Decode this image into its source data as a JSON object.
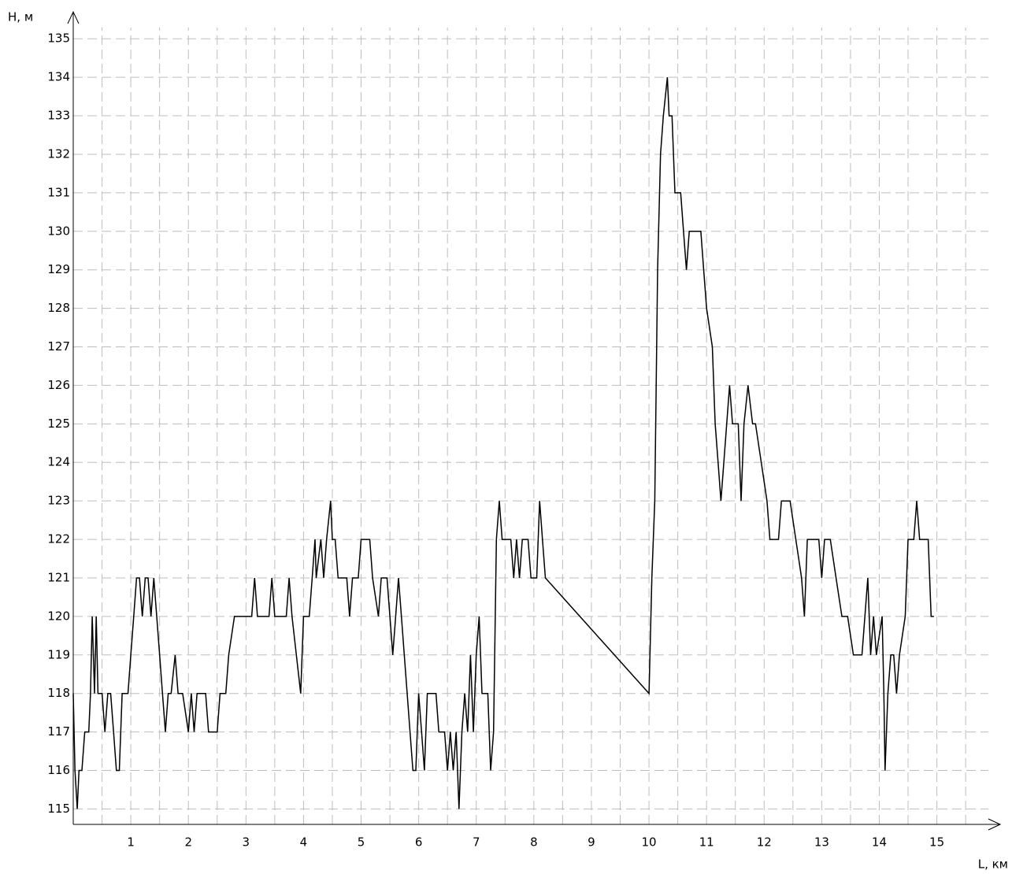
{
  "chart_data": {
    "type": "line",
    "y_label": "H, м",
    "x_label": "L, км",
    "x": [
      0,
      0.03,
      0.07,
      0.1,
      0.15,
      0.2,
      0.27,
      0.3,
      0.33,
      0.37,
      0.4,
      0.43,
      0.5,
      0.55,
      0.6,
      0.65,
      0.7,
      0.75,
      0.8,
      0.85,
      0.95,
      1.0,
      1.05,
      1.1,
      1.15,
      1.2,
      1.25,
      1.3,
      1.35,
      1.4,
      1.45,
      1.5,
      1.55,
      1.6,
      1.65,
      1.7,
      1.77,
      1.82,
      1.9,
      2.0,
      2.05,
      2.1,
      2.15,
      2.3,
      2.35,
      2.5,
      2.55,
      2.65,
      2.7,
      2.8,
      3.1,
      3.15,
      3.2,
      3.4,
      3.45,
      3.5,
      3.7,
      3.75,
      3.8,
      3.95,
      4.0,
      4.1,
      4.15,
      4.2,
      4.22,
      4.3,
      4.35,
      4.4,
      4.47,
      4.5,
      4.55,
      4.6,
      4.75,
      4.8,
      4.85,
      4.95,
      5.0,
      5.15,
      5.2,
      5.3,
      5.35,
      5.45,
      5.5,
      5.55,
      5.6,
      5.65,
      5.7,
      5.8,
      5.9,
      5.95,
      6.0,
      6.05,
      6.1,
      6.15,
      6.3,
      6.35,
      6.45,
      6.5,
      6.55,
      6.6,
      6.65,
      6.7,
      6.75,
      6.8,
      6.85,
      6.9,
      6.95,
      7.0,
      7.05,
      7.1,
      7.2,
      7.25,
      7.3,
      7.35,
      7.4,
      7.45,
      7.6,
      7.65,
      7.7,
      7.75,
      7.8,
      7.9,
      7.95,
      8.05,
      8.1,
      8.15,
      8.2,
      10.0,
      10.05,
      10.1,
      10.15,
      10.2,
      10.25,
      10.32,
      10.35,
      10.4,
      10.45,
      10.55,
      10.6,
      10.65,
      10.7,
      10.9,
      10.95,
      11.0,
      11.1,
      11.15,
      11.2,
      11.25,
      11.3,
      11.4,
      11.45,
      11.55,
      11.6,
      11.65,
      11.72,
      11.8,
      11.85,
      11.95,
      12.05,
      12.1,
      12.25,
      12.3,
      12.45,
      12.55,
      12.65,
      12.7,
      12.75,
      12.95,
      13.0,
      13.05,
      13.15,
      13.25,
      13.35,
      13.45,
      13.55,
      13.7,
      13.75,
      13.8,
      13.85,
      13.9,
      13.95,
      14.05,
      14.08,
      14.1,
      14.15,
      14.2,
      14.25,
      14.3,
      14.35,
      14.45,
      14.5,
      14.6,
      14.65,
      14.7,
      14.85,
      14.9,
      14.95
    ],
    "values": [
      118,
      116,
      115,
      116,
      116,
      117,
      117,
      118,
      120,
      118,
      120,
      118,
      118,
      117,
      118,
      118,
      117,
      116,
      116,
      118,
      118,
      119,
      120,
      121,
      121,
      120,
      121,
      121,
      120,
      121,
      120,
      119,
      118,
      117,
      118,
      118,
      119,
      118,
      118,
      117,
      118,
      117,
      118,
      118,
      117,
      117,
      118,
      118,
      119,
      120,
      120,
      121,
      120,
      120,
      121,
      120,
      120,
      121,
      120,
      118,
      120,
      120,
      121,
      122,
      121,
      122,
      121,
      122,
      123,
      122,
      122,
      121,
      121,
      120,
      121,
      121,
      122,
      122,
      121,
      120,
      121,
      121,
      120,
      119,
      120,
      121,
      120,
      118,
      116,
      116,
      118,
      117,
      116,
      118,
      118,
      117,
      117,
      116,
      117,
      116,
      117,
      115,
      117,
      118,
      117,
      119,
      117,
      119,
      120,
      118,
      118,
      116,
      117,
      122,
      123,
      122,
      122,
      121,
      122,
      121,
      122,
      122,
      121,
      121,
      123,
      122,
      121,
      118,
      121,
      123,
      129,
      132,
      133,
      134,
      133,
      133,
      131,
      131,
      130,
      129,
      130,
      130,
      129,
      128,
      127,
      125,
      124,
      123,
      124,
      126,
      125,
      125,
      123,
      125,
      126,
      125,
      125,
      124,
      123,
      122,
      122,
      123,
      123,
      122,
      121,
      120,
      122,
      122,
      121,
      122,
      122,
      121,
      120,
      120,
      119,
      119,
      120,
      121,
      119,
      120,
      119,
      120,
      118,
      116,
      118,
      119,
      119,
      118,
      119,
      120,
      122,
      122,
      123,
      122,
      122,
      120,
      120
    ],
    "color": "#000000",
    "xlim": [
      0,
      16.1
    ],
    "ylim": [
      114.6,
      135.7
    ],
    "xticks": [
      1,
      2,
      3,
      4,
      5,
      6,
      7,
      8,
      9,
      10,
      11,
      12,
      13,
      14,
      15
    ],
    "yticks": [
      115,
      116,
      117,
      118,
      119,
      120,
      121,
      122,
      123,
      124,
      125,
      126,
      127,
      128,
      129,
      130,
      131,
      132,
      133,
      134,
      135
    ],
    "xgrid": [
      0.5,
      1,
      1.5,
      2,
      2.5,
      3,
      3.5,
      4,
      4.5,
      5,
      5.5,
      6,
      6.5,
      7,
      7.5,
      8,
      8.5,
      9,
      9.5,
      10,
      10.5,
      11,
      11.5,
      12,
      12.5,
      13,
      13.5,
      14,
      14.5,
      15,
      15.5
    ],
    "grid": true
  }
}
